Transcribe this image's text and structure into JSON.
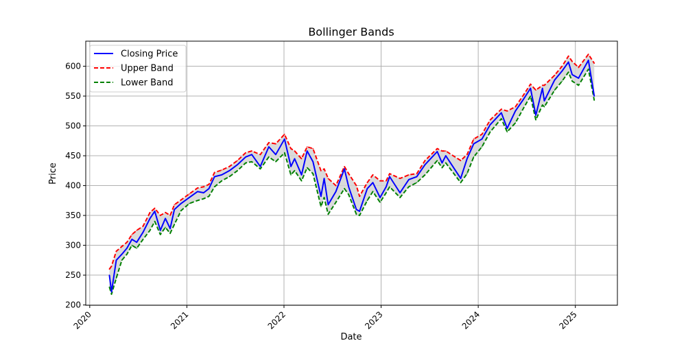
{
  "chart_data": {
    "type": "line",
    "title": "Bollinger Bands",
    "xlabel": "Date",
    "ylabel": "Price",
    "xlim": [
      "2019-12-17",
      "2025-06-08"
    ],
    "ylim": [
      199.5,
      642
    ],
    "grid": true,
    "legend_placement": "top-left",
    "x_ticks": [
      "2020",
      "2021",
      "2022",
      "2023",
      "2024",
      "2025"
    ],
    "y_ticks": [
      200,
      250,
      300,
      350,
      400,
      450,
      500,
      550,
      600
    ],
    "band_fill_color": "#d3d3d3",
    "dates": [
      "2020-03-15",
      "2020-03-23",
      "2020-04-10",
      "2020-05-01",
      "2020-05-20",
      "2020-06-08",
      "2020-06-26",
      "2020-07-20",
      "2020-08-15",
      "2020-09-02",
      "2020-09-23",
      "2020-10-12",
      "2020-10-30",
      "2020-11-15",
      "2020-12-10",
      "2021-01-10",
      "2021-02-10",
      "2021-03-05",
      "2021-03-25",
      "2021-04-15",
      "2021-05-12",
      "2021-06-10",
      "2021-07-10",
      "2021-08-10",
      "2021-09-02",
      "2021-10-04",
      "2021-11-05",
      "2021-12-01",
      "2022-01-03",
      "2022-01-27",
      "2022-02-10",
      "2022-03-08",
      "2022-03-29",
      "2022-04-20",
      "2022-05-20",
      "2022-06-01",
      "2022-06-16",
      "2022-07-15",
      "2022-08-16",
      "2022-09-01",
      "2022-09-30",
      "2022-10-12",
      "2022-11-10",
      "2022-12-01",
      "2022-12-28",
      "2023-01-20",
      "2023-02-02",
      "2023-03-13",
      "2023-04-15",
      "2023-05-15",
      "2023-06-15",
      "2023-07-31",
      "2023-08-18",
      "2023-09-01",
      "2023-10-27",
      "2023-11-20",
      "2023-12-15",
      "2024-01-15",
      "2024-02-15",
      "2024-03-28",
      "2024-04-19",
      "2024-05-20",
      "2024-06-20",
      "2024-07-16",
      "2024-08-05",
      "2024-08-30",
      "2024-09-06",
      "2024-10-15",
      "2024-11-12",
      "2024-12-06",
      "2024-12-20",
      "2025-01-13",
      "2025-02-19",
      "2025-03-13"
    ],
    "series": [
      {
        "name": "Closing Price",
        "color": "#0000ff",
        "style": "solid",
        "values": [
          250,
          222,
          275,
          285,
          295,
          310,
          305,
          322,
          345,
          357,
          325,
          345,
          328,
          360,
          370,
          380,
          390,
          388,
          395,
          415,
          418,
          425,
          435,
          448,
          452,
          432,
          465,
          452,
          478,
          432,
          445,
          418,
          458,
          440,
          382,
          412,
          368,
          390,
          428,
          398,
          360,
          357,
          395,
          405,
          380,
          398,
          415,
          388,
          410,
          415,
          435,
          457,
          438,
          450,
          412,
          445,
          470,
          478,
          502,
          522,
          496,
          525,
          545,
          563,
          518,
          563,
          542,
          577,
          592,
          607,
          586,
          580,
          610,
          550
        ]
      },
      {
        "name": "Upper Band",
        "color": "#ff0000",
        "style": "dashed",
        "values": [
          260,
          265,
          290,
          298,
          305,
          318,
          325,
          332,
          355,
          362,
          350,
          355,
          350,
          368,
          376,
          386,
          396,
          398,
          402,
          422,
          426,
          432,
          442,
          455,
          458,
          452,
          472,
          470,
          486,
          462,
          458,
          445,
          465,
          462,
          425,
          428,
          412,
          400,
          432,
          420,
          400,
          382,
          405,
          418,
          408,
          408,
          420,
          412,
          418,
          420,
          442,
          462,
          458,
          458,
          442,
          452,
          478,
          486,
          510,
          528,
          525,
          532,
          552,
          570,
          560,
          568,
          568,
          585,
          600,
          617,
          608,
          598,
          620,
          605
        ]
      },
      {
        "name": "Lower Band",
        "color": "#008000",
        "style": "dashed",
        "values": [
          230,
          218,
          245,
          275,
          285,
          300,
          295,
          310,
          325,
          340,
          318,
          330,
          320,
          335,
          358,
          370,
          375,
          378,
          382,
          398,
          408,
          415,
          425,
          438,
          440,
          428,
          448,
          440,
          455,
          418,
          425,
          408,
          430,
          420,
          365,
          380,
          352,
          372,
          395,
          385,
          352,
          350,
          375,
          390,
          372,
          388,
          398,
          380,
          398,
          405,
          418,
          442,
          430,
          438,
          405,
          420,
          448,
          465,
          490,
          512,
          490,
          505,
          530,
          550,
          510,
          535,
          532,
          560,
          575,
          590,
          575,
          568,
          595,
          543
        ]
      }
    ]
  }
}
